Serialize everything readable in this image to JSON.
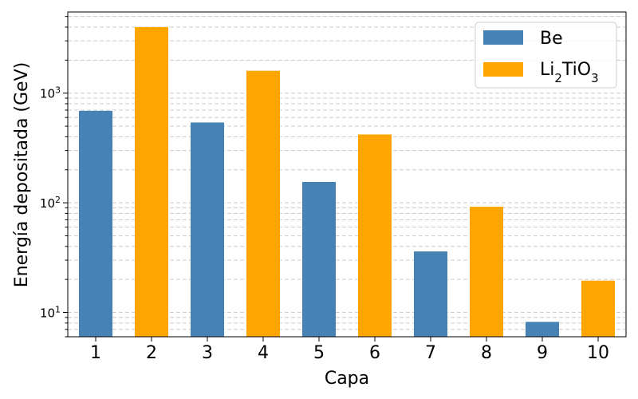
{
  "chart_data": {
    "type": "bar",
    "scale_y": "log",
    "categories": [
      "1",
      "2",
      "3",
      "4",
      "5",
      "6",
      "7",
      "8",
      "9",
      "10"
    ],
    "series": [
      {
        "name": "Be",
        "color": "#4682b4",
        "x": [
          "1",
          "3",
          "5",
          "7",
          "9"
        ],
        "values": [
          690,
          540,
          155,
          36,
          8.2
        ]
      },
      {
        "name": "Li2TiO3",
        "color": "#ffa500",
        "x": [
          "2",
          "4",
          "6",
          "8",
          "10"
        ],
        "values": [
          4000,
          1600,
          420,
          92,
          19.5
        ]
      }
    ],
    "xlabel": "Capa",
    "ylabel": "Energía depositada (GeV)",
    "ylim": [
      6,
      5500
    ],
    "ytick_labels": [
      {
        "base": "10",
        "exp": "1"
      },
      {
        "base": "10",
        "exp": "2"
      },
      {
        "base": "10",
        "exp": "3"
      }
    ],
    "grid": "y, dashed, major and minor",
    "legend_position": "top-right",
    "legend": [
      {
        "name": "Be",
        "color": "#4682b4"
      },
      {
        "name": "Li2TiO3",
        "color": "#ffa500",
        "formula": {
          "a": "Li",
          "s1": "2",
          "b": "TiO",
          "s2": "3"
        }
      }
    ]
  }
}
